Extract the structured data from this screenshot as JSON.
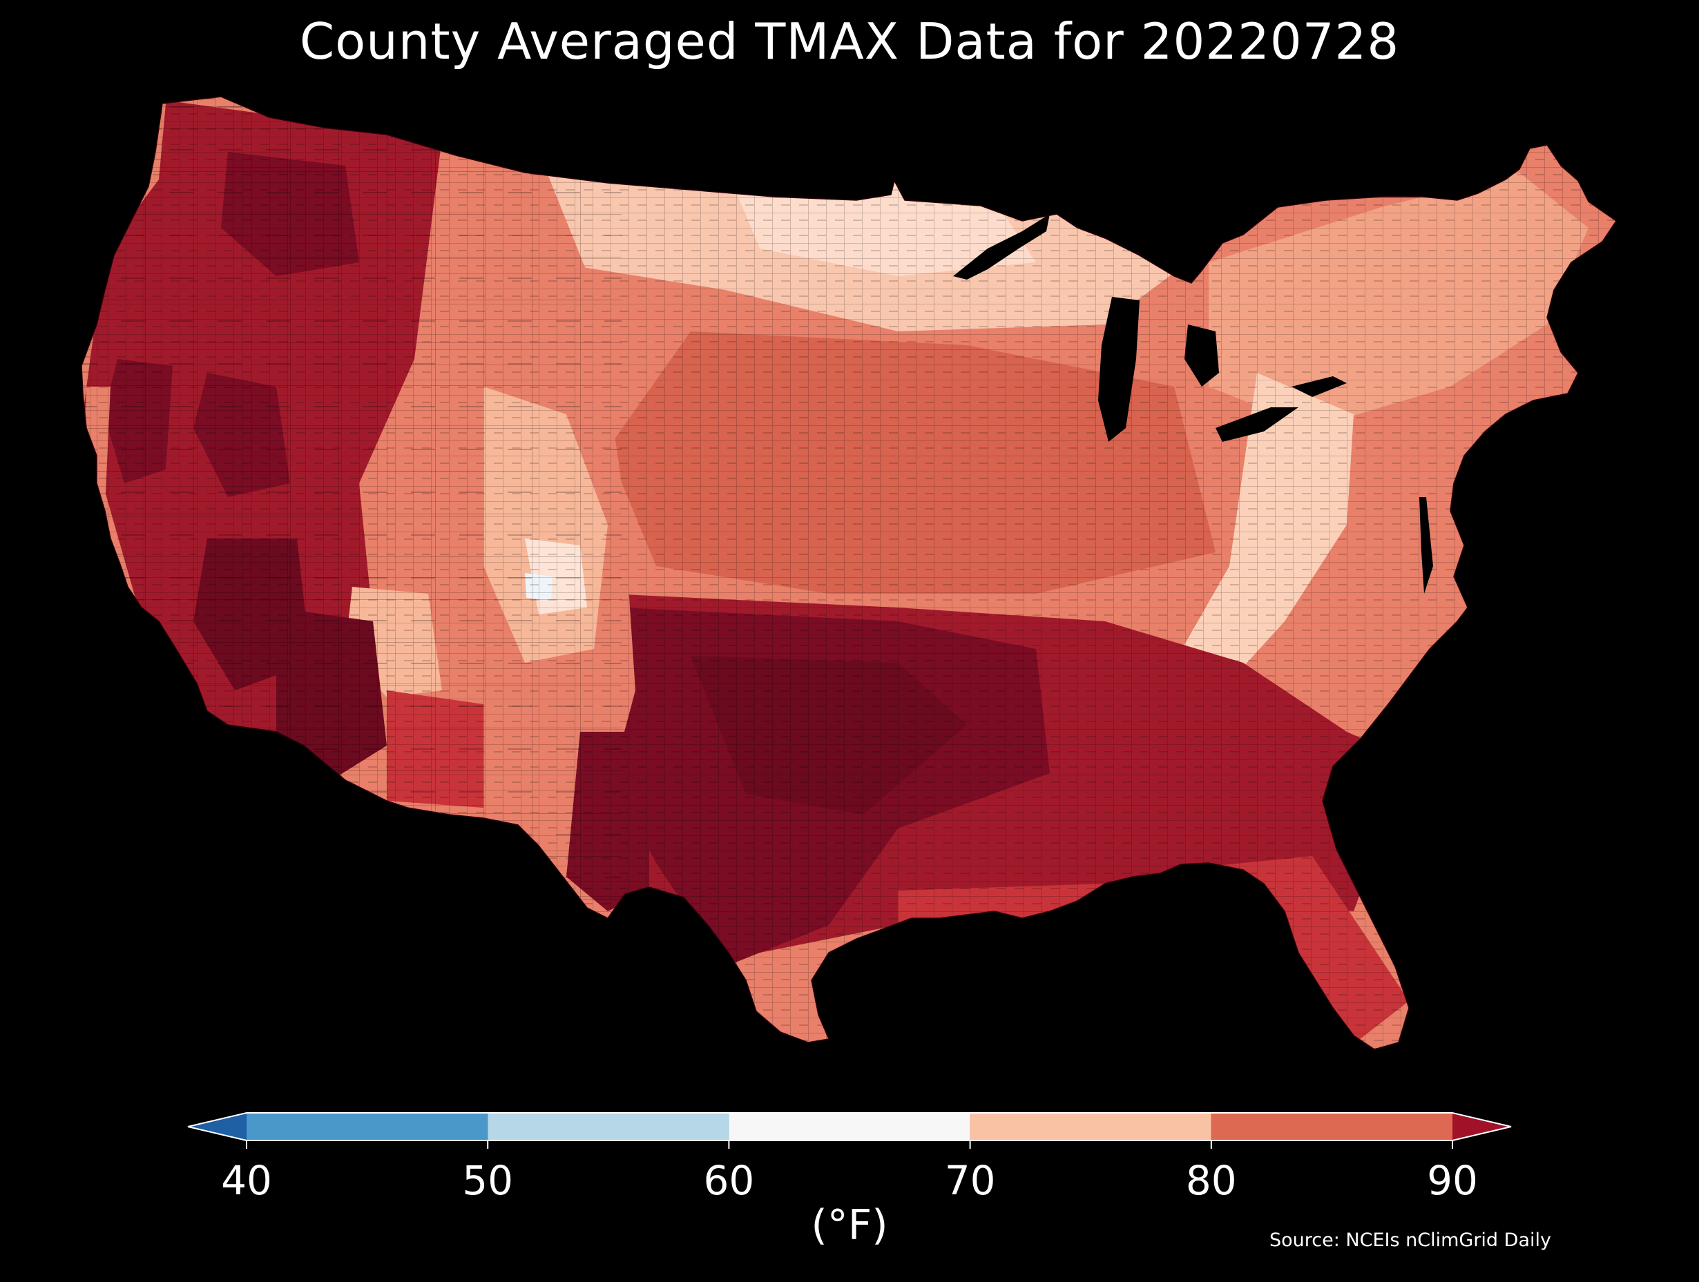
{
  "title": "County Averaged TMAX Data for 20220728",
  "colorbar": {
    "ticks": [
      "40",
      "50",
      "60",
      "70",
      "80",
      "90"
    ],
    "unit_label": "(°F)",
    "bins": [
      {
        "from": 40,
        "to": 50,
        "color": "#4a97c9"
      },
      {
        "from": 50,
        "to": 60,
        "color": "#b5d7e8"
      },
      {
        "from": 60,
        "to": 70,
        "color": "#f7f7f7"
      },
      {
        "from": 70,
        "to": 80,
        "color": "#f9c2a5"
      },
      {
        "from": 80,
        "to": 90,
        "color": "#de6953"
      }
    ],
    "under_color": "#1f5fa3",
    "over_color": "#a11228"
  },
  "source": "Source: NCEIs nClimGrid Daily",
  "map": {
    "region": "Contiguous United States",
    "colors": {
      "hottest": "#6c0a1f",
      "hot": "#a11a2b",
      "warm": "#d8634f",
      "mild": "#f7b799",
      "cool": "#fde4d6",
      "coolest": "#eef4fa",
      "background": "#000000"
    }
  }
}
